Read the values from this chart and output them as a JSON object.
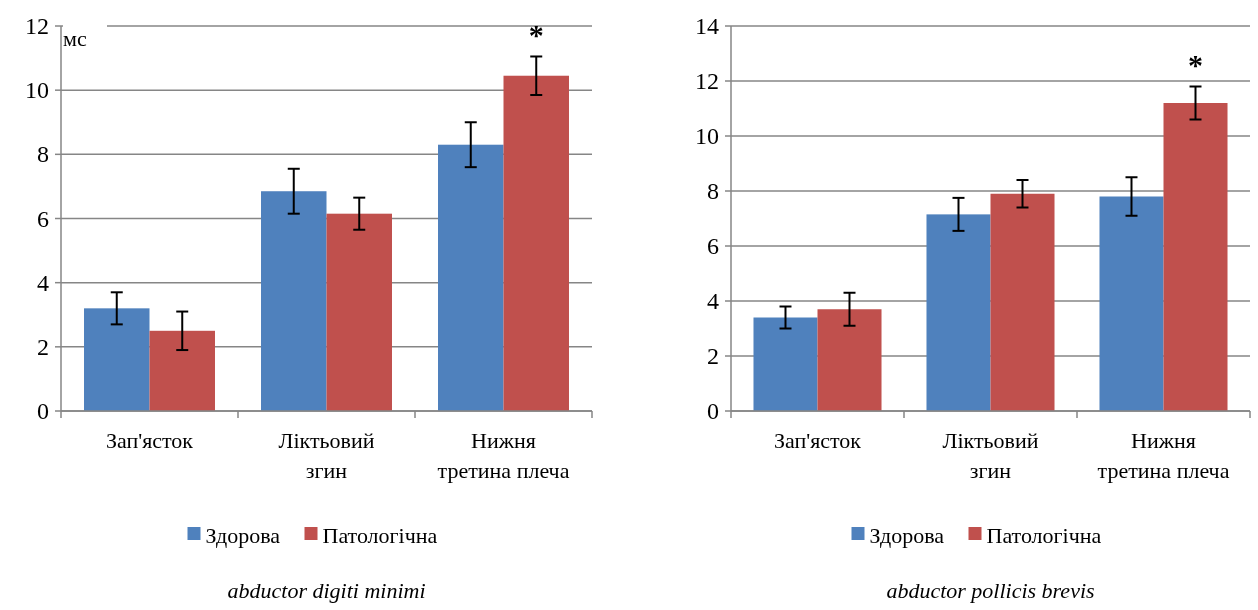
{
  "chart_data": [
    {
      "type": "bar",
      "title": "abductor digiti minimi",
      "ylabel": "мс",
      "categories": [
        "Зап'ясток",
        "Ліктьовий\nзгин",
        "Нижня\nтретина плеча"
      ],
      "series": [
        {
          "name": "Здорова",
          "color": "#4f81bd",
          "values": [
            3.2,
            6.85,
            8.3
          ],
          "errors": [
            0.5,
            0.7,
            0.7
          ]
        },
        {
          "name": "Патологічна",
          "color": "#c0504d",
          "values": [
            2.5,
            6.15,
            10.45
          ],
          "errors": [
            0.6,
            0.5,
            0.6
          ]
        }
      ],
      "ylim": [
        0,
        12
      ],
      "yticks": [
        0,
        2,
        4,
        6,
        8,
        10,
        12
      ],
      "grid": "y",
      "legend": "bottom",
      "annotations": [
        "*"
      ]
    },
    {
      "type": "bar",
      "title": "abductor pollicis brevis",
      "categories": [
        "Зап'ясток",
        "Ліктьовий\nзгин",
        "Нижня\nтретина плеча"
      ],
      "series": [
        {
          "name": "Здорова",
          "color": "#4f81bd",
          "values": [
            3.4,
            7.15,
            7.8
          ],
          "errors": [
            0.4,
            0.6,
            0.7
          ]
        },
        {
          "name": "Патологічна",
          "color": "#c0504d",
          "values": [
            3.7,
            7.9,
            11.2
          ],
          "errors": [
            0.6,
            0.5,
            0.6
          ]
        }
      ],
      "ylim": [
        0,
        14
      ],
      "yticks": [
        0,
        2,
        4,
        6,
        8,
        10,
        12,
        14
      ],
      "grid": "y",
      "legend": "bottom",
      "annotations": [
        "*"
      ]
    }
  ]
}
